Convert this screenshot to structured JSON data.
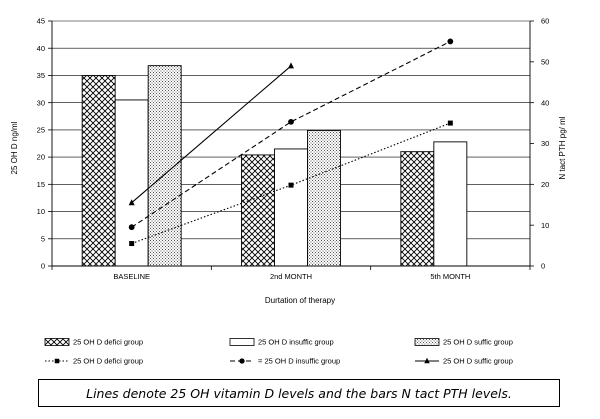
{
  "chart_data": {
    "type": "bar+line",
    "categories": [
      "BASELINE",
      "2nd MONTH",
      "5th MONTH"
    ],
    "xlabel": "Durtation of therapy",
    "ylabel_left": "25 OH D ng/ml",
    "ylabel_right": "N tact PTH pg/ ml",
    "ylim_left": [
      0,
      45
    ],
    "yticks_left": [
      0,
      5,
      10,
      15,
      20,
      25,
      30,
      35,
      40,
      45
    ],
    "ylim_right": [
      0,
      60
    ],
    "yticks_right": [
      0,
      10,
      20,
      30,
      40,
      50,
      60
    ],
    "bar_series": [
      {
        "name": "25 OH D defici group",
        "pattern": "crosshatch",
        "values": [
          35.0,
          20.4,
          21.0
        ]
      },
      {
        "name": "25 OH D insuffic group",
        "pattern": "plain",
        "values": [
          30.5,
          21.5,
          22.8
        ]
      },
      {
        "name": "25 OH D suffic group",
        "pattern": "dots",
        "values": [
          36.8,
          24.9,
          null
        ]
      }
    ],
    "line_series": [
      {
        "name": "25 OH D defici group",
        "marker": "square",
        "dash": "dotted",
        "values": [
          5.5,
          19.8,
          35.0
        ]
      },
      {
        "name": "= 25 OH D insuffic group",
        "marker": "circle",
        "dash": "dashed",
        "values": [
          9.5,
          35.3,
          55.0
        ]
      },
      {
        "name": "25 OH D suffic group",
        "marker": "triangle",
        "dash": "solid",
        "values": [
          15.5,
          49.0,
          null
        ]
      }
    ],
    "grid": "horizontal",
    "legend_position": "bottom"
  },
  "caption": "Lines denote 25 OH vitamin D levels and the bars N tact PTH levels."
}
